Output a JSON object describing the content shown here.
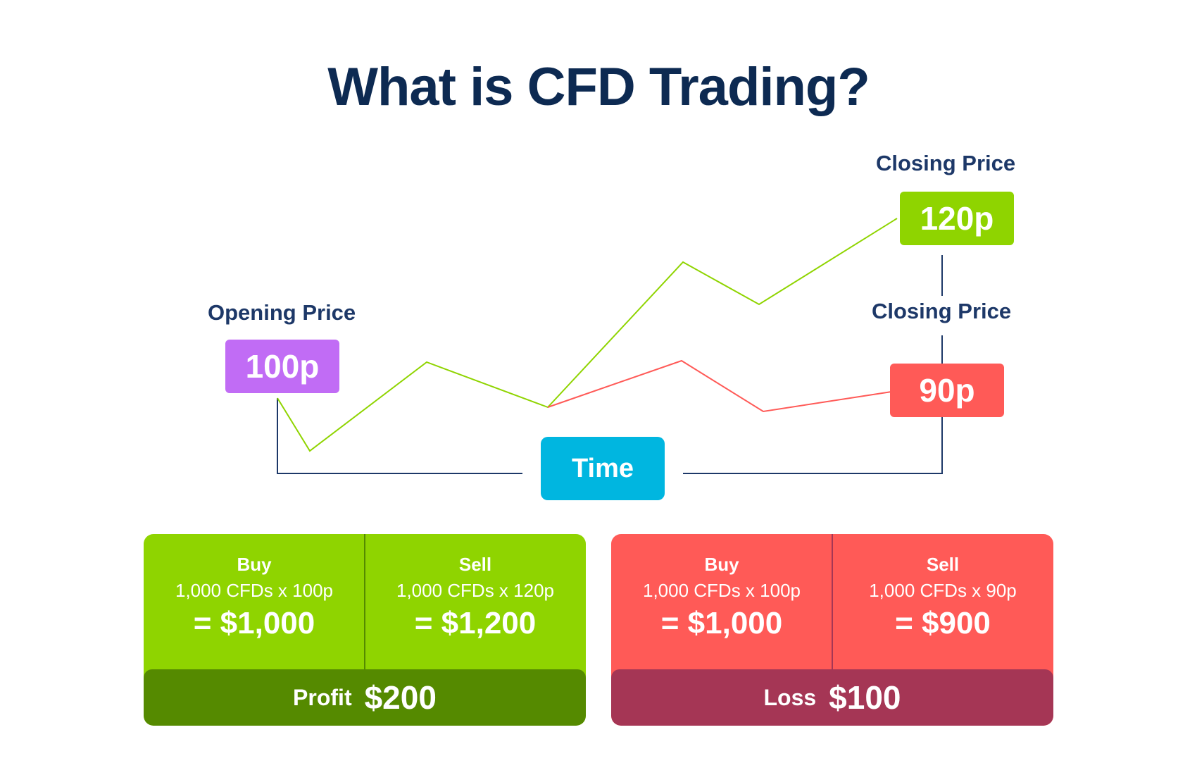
{
  "title": "What is CFD Trading?",
  "chart": {
    "opening_label": "Opening Price",
    "opening_price": "100p",
    "closing_label_up": "Closing Price",
    "closing_price_up": "120p",
    "closing_label_down": "Closing Price",
    "closing_price_down": "90p",
    "axis_label": "Time"
  },
  "profit_panel": {
    "buy": {
      "heading": "Buy",
      "detail": "1,000 CFDs x 100p",
      "total": "= $1,000"
    },
    "sell": {
      "heading": "Sell",
      "detail": "1,000 CFDs x 120p",
      "total": "= $1,200"
    },
    "result_label": "Profit",
    "result_value": "$200"
  },
  "loss_panel": {
    "buy": {
      "heading": "Buy",
      "detail": "1,000 CFDs x 100p",
      "total": "= $1,000"
    },
    "sell": {
      "heading": "Sell",
      "detail": "1,000 CFDs x 90p",
      "total": "= $900"
    },
    "result_label": "Loss",
    "result_value": "$100"
  },
  "colors": {
    "title": "#0d2a52",
    "opening": "#c16cf5",
    "up": "#8fd400",
    "down": "#ff5a57",
    "time": "#00b6e0",
    "axis": "#1d3868",
    "profit_footer": "#558a00",
    "loss_footer": "#a53655"
  }
}
